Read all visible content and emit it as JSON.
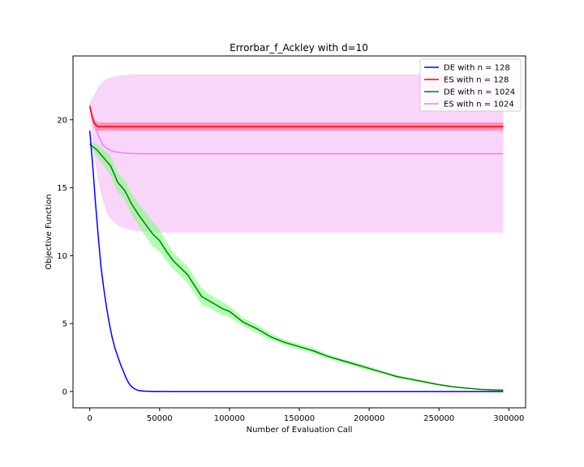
{
  "chart_data": {
    "type": "line",
    "title": "Errorbar_f_Ackley with d=10",
    "xlabel": "Number of Evaluation Call",
    "ylabel": "Objective Function",
    "xlim": [
      -12000,
      312000
    ],
    "ylim": [
      -1.2,
      24.7
    ],
    "xticks": [
      0,
      50000,
      100000,
      150000,
      200000,
      250000,
      300000
    ],
    "yticks": [
      0,
      5,
      10,
      15,
      20
    ],
    "grid": false,
    "legend_position": "top-right",
    "series": [
      {
        "name": "DE with n = 128",
        "color": "#0000ff",
        "band_color": "#8888ff",
        "x": [
          0,
          2000,
          4000,
          6000,
          8000,
          10000,
          12000,
          14000,
          16000,
          18000,
          20000,
          22000,
          24000,
          26000,
          28000,
          30000,
          32000,
          34000,
          36000,
          38000,
          40000,
          45000,
          50000,
          60000,
          100000,
          150000,
          200000,
          250000,
          296000
        ],
        "y": [
          19.2,
          16.8,
          14.0,
          11.5,
          9.2,
          7.6,
          6.2,
          5.0,
          4.0,
          3.2,
          2.6,
          2.0,
          1.5,
          1.0,
          0.6,
          0.35,
          0.2,
          0.1,
          0.06,
          0.04,
          0.02,
          0.01,
          0.005,
          0.0,
          0.0,
          0.0,
          0.0,
          0.0,
          0.0
        ],
        "lower": [
          19.0,
          16.6,
          13.8,
          11.3,
          9.0,
          7.4,
          6.0,
          4.9,
          3.9,
          3.1,
          2.5,
          1.9,
          1.4,
          0.9,
          0.55,
          0.3,
          0.17,
          0.08,
          0.05,
          0.03,
          0.015,
          0.008,
          0.004,
          0.0,
          0.0,
          0.0,
          0.0,
          0.0,
          0.0
        ],
        "upper": [
          19.4,
          17.0,
          14.2,
          11.7,
          9.4,
          7.8,
          6.4,
          5.1,
          4.1,
          3.3,
          2.7,
          2.1,
          1.6,
          1.1,
          0.65,
          0.4,
          0.23,
          0.12,
          0.07,
          0.05,
          0.025,
          0.012,
          0.006,
          0.0,
          0.0,
          0.0,
          0.0,
          0.0,
          0.0
        ]
      },
      {
        "name": "ES with n = 128",
        "color": "#ff0000",
        "band_color": "#ff6688",
        "x": [
          0,
          1500,
          3000,
          4500,
          6000,
          10000,
          50000,
          100000,
          150000,
          200000,
          250000,
          296000
        ],
        "y": [
          21.0,
          20.3,
          19.8,
          19.6,
          19.5,
          19.5,
          19.5,
          19.5,
          19.5,
          19.5,
          19.5,
          19.5
        ],
        "lower": [
          20.8,
          20.0,
          19.4,
          19.25,
          19.2,
          19.2,
          19.2,
          19.2,
          19.2,
          19.2,
          19.2,
          19.2
        ],
        "upper": [
          21.2,
          20.6,
          20.1,
          19.9,
          19.8,
          19.8,
          19.8,
          19.8,
          19.8,
          19.8,
          19.8,
          19.8
        ]
      },
      {
        "name": "DE with n = 1024",
        "color": "#008000",
        "band_color": "#7dff7d",
        "x": [
          0,
          5000,
          10000,
          15000,
          20000,
          25000,
          30000,
          35000,
          40000,
          45000,
          50000,
          55000,
          60000,
          65000,
          70000,
          75000,
          80000,
          85000,
          90000,
          95000,
          100000,
          110000,
          120000,
          130000,
          140000,
          150000,
          160000,
          170000,
          180000,
          190000,
          200000,
          210000,
          220000,
          230000,
          240000,
          250000,
          260000,
          270000,
          280000,
          296000
        ],
        "y": [
          18.2,
          17.8,
          17.2,
          16.6,
          15.4,
          14.8,
          13.8,
          13.0,
          12.3,
          11.6,
          11.1,
          10.3,
          9.6,
          9.1,
          8.6,
          7.8,
          7.0,
          6.7,
          6.4,
          6.1,
          5.9,
          5.1,
          4.6,
          4.0,
          3.6,
          3.3,
          3.0,
          2.6,
          2.3,
          2.0,
          1.7,
          1.4,
          1.1,
          0.9,
          0.7,
          0.5,
          0.35,
          0.25,
          0.15,
          0.1
        ],
        "lower": [
          18.0,
          17.4,
          16.6,
          15.9,
          14.7,
          14.1,
          13.0,
          12.2,
          11.4,
          10.7,
          10.3,
          9.6,
          9.0,
          8.5,
          8.0,
          7.2,
          6.4,
          6.2,
          5.9,
          5.6,
          5.5,
          4.8,
          4.3,
          3.75,
          3.4,
          3.1,
          2.8,
          2.45,
          2.15,
          1.85,
          1.55,
          1.3,
          1.0,
          0.8,
          0.62,
          0.44,
          0.3,
          0.2,
          0.12,
          0.07
        ],
        "upper": [
          18.4,
          18.2,
          17.8,
          17.3,
          16.1,
          15.5,
          14.6,
          13.8,
          13.2,
          12.5,
          11.9,
          11.0,
          10.2,
          9.7,
          9.2,
          8.4,
          7.6,
          7.2,
          6.9,
          6.6,
          6.3,
          5.4,
          4.9,
          4.25,
          3.8,
          3.5,
          3.2,
          2.75,
          2.45,
          2.15,
          1.85,
          1.5,
          1.2,
          1.0,
          0.78,
          0.56,
          0.4,
          0.3,
          0.18,
          0.13
        ]
      },
      {
        "name": "ES with n = 1024",
        "color": "#ee82ee",
        "band_color": "#f9d5f9",
        "x": [
          0,
          3000,
          6000,
          9000,
          12000,
          15000,
          18000,
          21000,
          25000,
          30000,
          35000,
          40000,
          50000,
          100000,
          150000,
          200000,
          250000,
          296000
        ],
        "y": [
          21.1,
          19.8,
          18.9,
          18.2,
          17.9,
          17.75,
          17.65,
          17.6,
          17.55,
          17.52,
          17.5,
          17.5,
          17.5,
          17.5,
          17.5,
          17.5,
          17.5,
          17.5
        ],
        "lower": [
          20.8,
          17.5,
          15.5,
          14.2,
          13.2,
          12.7,
          12.4,
          12.2,
          12.0,
          11.9,
          11.8,
          11.75,
          11.7,
          11.7,
          11.7,
          11.7,
          11.7,
          11.7
        ],
        "upper": [
          21.3,
          21.8,
          22.4,
          22.8,
          23.0,
          23.1,
          23.2,
          23.25,
          23.3,
          23.35,
          23.35,
          23.35,
          23.35,
          23.35,
          23.35,
          23.35,
          23.35,
          23.35
        ]
      }
    ]
  }
}
